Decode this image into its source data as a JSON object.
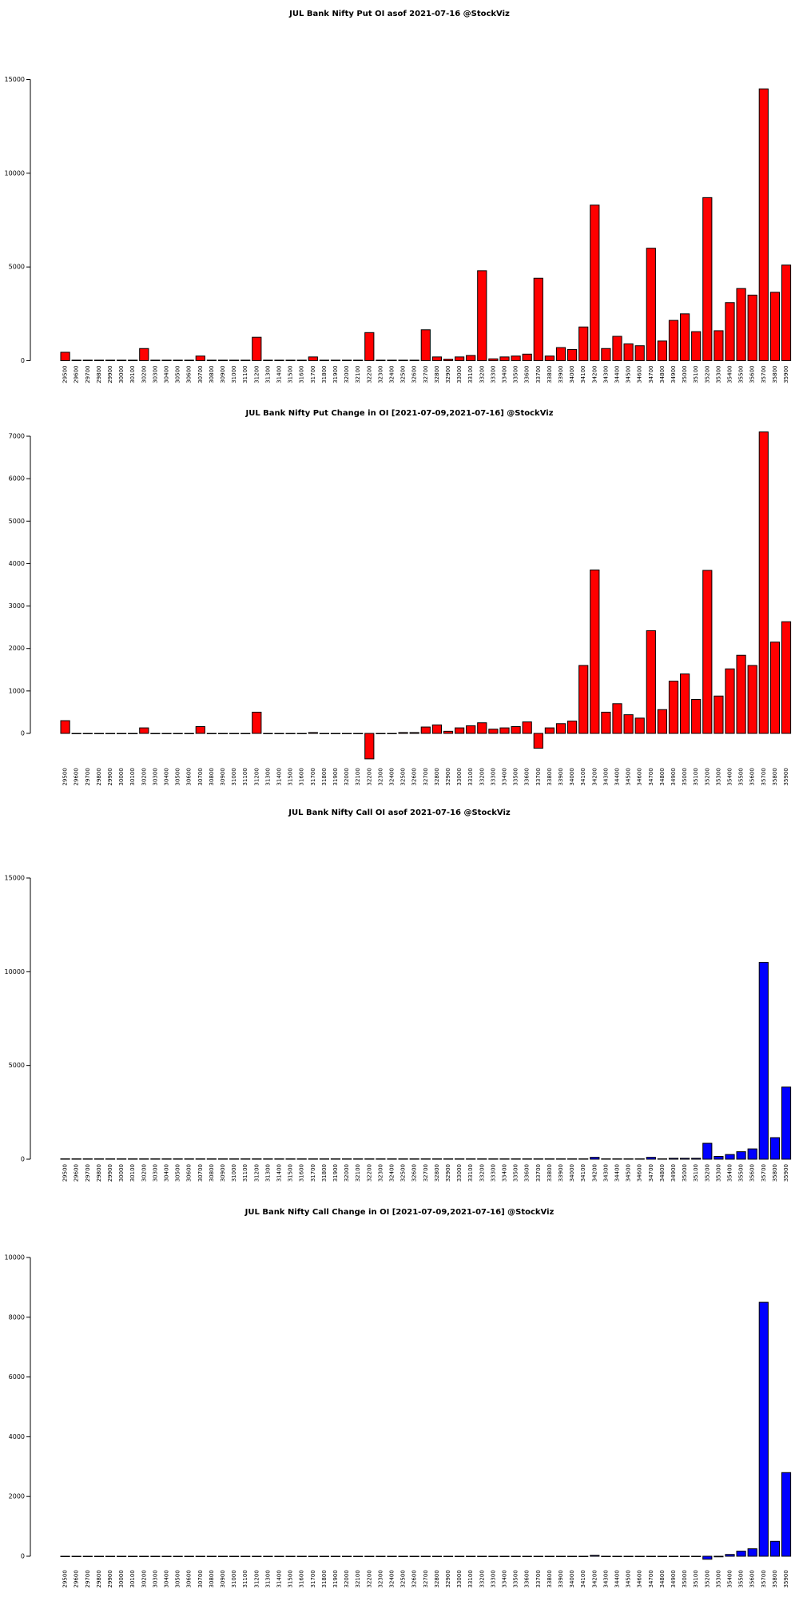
{
  "chart_data": [
    {
      "type": "bar",
      "title": "JUL Bank Nifty Put OI asof 2021-07-16 @StockViz",
      "categories": [
        "29500",
        "29600",
        "29700",
        "29800",
        "29900",
        "30000",
        "30100",
        "30200",
        "30300",
        "30400",
        "30500",
        "30600",
        "30700",
        "30800",
        "30900",
        "31000",
        "31100",
        "31200",
        "31300",
        "31400",
        "31500",
        "31600",
        "31700",
        "31800",
        "31900",
        "32000",
        "32100",
        "32200",
        "32300",
        "32400",
        "32500",
        "32600",
        "32700",
        "32800",
        "32900",
        "33000",
        "33100",
        "33200",
        "33300",
        "33400",
        "33500",
        "33600",
        "33700",
        "33800",
        "33900",
        "34000",
        "34100",
        "34200",
        "34300",
        "34400",
        "34500",
        "34600",
        "34700",
        "34800",
        "34900",
        "35000",
        "35100",
        "35200",
        "35300",
        "35400",
        "35500",
        "35600",
        "35700",
        "35800",
        "35900"
      ],
      "values": [
        450,
        30,
        30,
        30,
        30,
        30,
        30,
        650,
        30,
        30,
        30,
        30,
        250,
        30,
        30,
        30,
        30,
        1250,
        30,
        30,
        30,
        30,
        200,
        30,
        30,
        30,
        30,
        1500,
        30,
        30,
        30,
        30,
        1650,
        200,
        80,
        200,
        280,
        4800,
        100,
        200,
        250,
        350,
        4400,
        250,
        700,
        600,
        1800,
        8300,
        650,
        1300,
        900,
        800,
        6000,
        1050,
        2150,
        2500,
        1550,
        8700,
        1600,
        3100,
        3850,
        3500,
        14500,
        3650,
        5100
      ],
      "color": "#ff0000",
      "ylim": [
        0,
        15000
      ],
      "yticks": [
        0,
        5000,
        10000,
        15000
      ]
    },
    {
      "type": "bar",
      "title": "JUL Bank Nifty Put Change in OI [2021-07-09,2021-07-16] @StockViz",
      "categories": [
        "29500",
        "29600",
        "29700",
        "29800",
        "29900",
        "30000",
        "30100",
        "30200",
        "30300",
        "30400",
        "30500",
        "30600",
        "30700",
        "30800",
        "30900",
        "31000",
        "31100",
        "31200",
        "31300",
        "31400",
        "31500",
        "31600",
        "31700",
        "31800",
        "31900",
        "32000",
        "32100",
        "32200",
        "32300",
        "32400",
        "32500",
        "32600",
        "32700",
        "32800",
        "32900",
        "33000",
        "33100",
        "33200",
        "33300",
        "33400",
        "33500",
        "33600",
        "33700",
        "33800",
        "33900",
        "34000",
        "34100",
        "34200",
        "34300",
        "34400",
        "34500",
        "34600",
        "34700",
        "34800",
        "34900",
        "35000",
        "35100",
        "35200",
        "35300",
        "35400",
        "35500",
        "35600",
        "35700",
        "35800",
        "35900"
      ],
      "values": [
        300,
        0,
        0,
        0,
        0,
        0,
        0,
        130,
        0,
        0,
        0,
        0,
        160,
        0,
        0,
        0,
        0,
        500,
        0,
        0,
        0,
        0,
        20,
        0,
        0,
        0,
        0,
        -600,
        0,
        0,
        20,
        20,
        150,
        200,
        50,
        130,
        180,
        250,
        100,
        130,
        160,
        270,
        -350,
        130,
        230,
        290,
        1600,
        3850,
        500,
        700,
        440,
        360,
        2420,
        560,
        1230,
        1400,
        800,
        3840,
        880,
        1520,
        1840,
        1600,
        7100,
        2150,
        2630
      ],
      "color": "#ff0000",
      "ylim": [
        -700,
        7100
      ],
      "yticks": [
        0,
        1000,
        2000,
        3000,
        4000,
        5000,
        6000,
        7000
      ]
    },
    {
      "type": "bar",
      "title": "JUL Bank Nifty Call OI asof 2021-07-16 @StockViz",
      "categories": [
        "29500",
        "29600",
        "29700",
        "29800",
        "29900",
        "30000",
        "30100",
        "30200",
        "30300",
        "30400",
        "30500",
        "30600",
        "30700",
        "30800",
        "30900",
        "31000",
        "31100",
        "31200",
        "31300",
        "31400",
        "31500",
        "31600",
        "31700",
        "31800",
        "31900",
        "32000",
        "32100",
        "32200",
        "32300",
        "32400",
        "32500",
        "32600",
        "32700",
        "32800",
        "32900",
        "33000",
        "33100",
        "33200",
        "33300",
        "33400",
        "33500",
        "33600",
        "33700",
        "33800",
        "33900",
        "34000",
        "34100",
        "34200",
        "34300",
        "34400",
        "34500",
        "34600",
        "34700",
        "34800",
        "34900",
        "35000",
        "35100",
        "35200",
        "35300",
        "35400",
        "35500",
        "35600",
        "35700",
        "35800",
        "35900"
      ],
      "values": [
        20,
        20,
        20,
        20,
        20,
        20,
        20,
        20,
        20,
        20,
        20,
        20,
        20,
        20,
        20,
        20,
        20,
        20,
        20,
        20,
        20,
        20,
        20,
        20,
        20,
        20,
        20,
        20,
        20,
        20,
        20,
        20,
        20,
        20,
        20,
        20,
        20,
        20,
        20,
        20,
        20,
        20,
        20,
        20,
        20,
        20,
        20,
        100,
        20,
        20,
        20,
        20,
        100,
        20,
        50,
        50,
        50,
        850,
        150,
        250,
        400,
        550,
        10500,
        1150,
        3850
      ],
      "color": "#0000ff",
      "ylim": [
        0,
        15000
      ],
      "yticks": [
        0,
        5000,
        10000,
        15000
      ]
    },
    {
      "type": "bar",
      "title": "JUL Bank Nifty Call Change in OI [2021-07-09,2021-07-16] @StockViz",
      "categories": [
        "29500",
        "29600",
        "29700",
        "29800",
        "29900",
        "30000",
        "30100",
        "30200",
        "30300",
        "30400",
        "30500",
        "30600",
        "30700",
        "30800",
        "30900",
        "31000",
        "31100",
        "31200",
        "31300",
        "31400",
        "31500",
        "31600",
        "31700",
        "31800",
        "31900",
        "32000",
        "32100",
        "32200",
        "32300",
        "32400",
        "32500",
        "32600",
        "32700",
        "32800",
        "32900",
        "33000",
        "33100",
        "33200",
        "33300",
        "33400",
        "33500",
        "33600",
        "33700",
        "33800",
        "33900",
        "34000",
        "34100",
        "34200",
        "34300",
        "34400",
        "34500",
        "34600",
        "34700",
        "34800",
        "34900",
        "35000",
        "35100",
        "35200",
        "35300",
        "35400",
        "35500",
        "35600",
        "35700",
        "35800",
        "35900"
      ],
      "values": [
        -10,
        -10,
        -10,
        -10,
        -10,
        -10,
        -10,
        -10,
        -10,
        -10,
        -10,
        -10,
        -10,
        -10,
        -10,
        -10,
        -10,
        -10,
        -10,
        -10,
        -10,
        -10,
        -10,
        -10,
        -10,
        -10,
        -10,
        -10,
        -10,
        -10,
        -10,
        -10,
        -10,
        -10,
        -10,
        -10,
        -10,
        -10,
        -10,
        -10,
        -10,
        -10,
        -10,
        -10,
        -10,
        -10,
        -10,
        30,
        -10,
        -10,
        -10,
        -10,
        -10,
        -10,
        -10,
        -10,
        -10,
        -100,
        -20,
        60,
        170,
        250,
        8500,
        500,
        2800
      ],
      "color": "#0000ff",
      "ylim": [
        -300,
        10000
      ],
      "yticks": [
        0,
        2000,
        4000,
        6000,
        8000,
        10000
      ]
    }
  ]
}
